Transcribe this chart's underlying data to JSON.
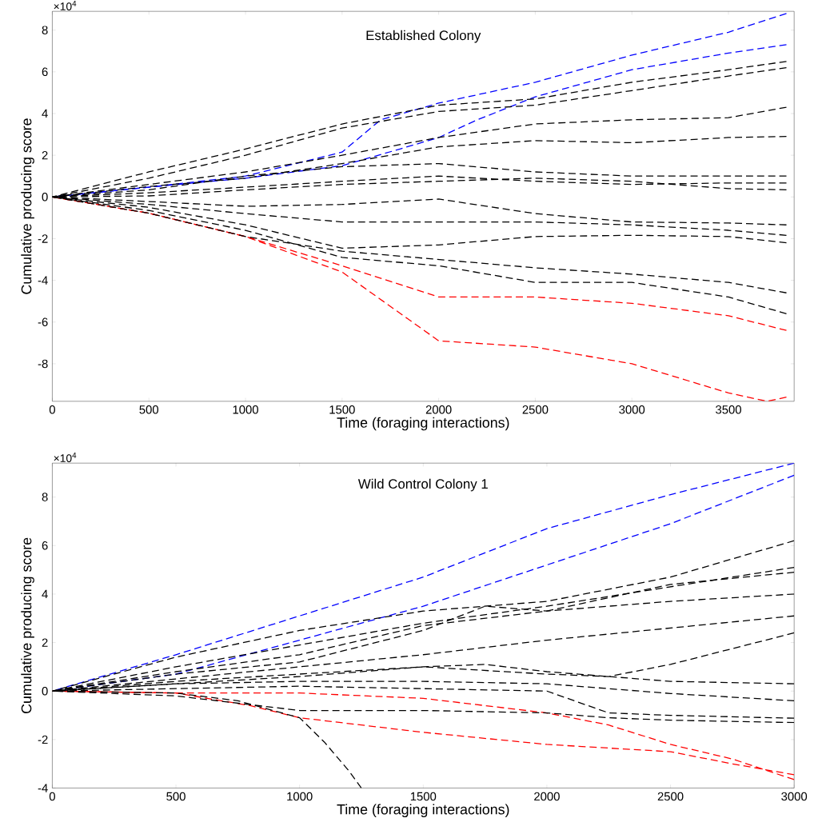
{
  "chart_data": [
    {
      "type": "line",
      "title": "Established Colony",
      "xlabel": "Time (foraging interactions)",
      "ylabel": "Cumulative producing score",
      "annotations": [
        "×10$^{4}$"
      ],
      "line_style": "dashed",
      "xlim": [
        0,
        3840
      ],
      "ylim": [
        -9.8,
        8.9
      ],
      "xticks": [
        0,
        500,
        1000,
        1500,
        2000,
        2500,
        3000,
        3500
      ],
      "yticks": [
        -8,
        -6,
        -4,
        -2,
        0,
        2,
        4,
        6,
        8
      ],
      "series": [
        {
          "color": "#0000ff",
          "x": [
            0,
            500,
            1000,
            1500,
            1700,
            2000,
            2500,
            3000,
            3500,
            3800
          ],
          "values": [
            0,
            0.47,
            1.0,
            2.15,
            3.7,
            4.5,
            5.5,
            6.8,
            7.9,
            8.8
          ]
        },
        {
          "color": "#0000ff",
          "x": [
            0,
            500,
            1000,
            1500,
            1800,
            2000,
            2200,
            2500,
            3000,
            3500,
            3800
          ],
          "values": [
            0,
            0.47,
            0.9,
            1.5,
            2.3,
            2.85,
            3.7,
            4.8,
            6.1,
            6.9,
            7.3
          ]
        },
        {
          "color": "#ff0000",
          "x": [
            0,
            500,
            1000,
            1500,
            2000,
            2500,
            3000,
            3500,
            3800
          ],
          "values": [
            0,
            -0.78,
            -1.9,
            -3.3,
            -4.8,
            -4.8,
            -5.1,
            -5.7,
            -6.4
          ]
        },
        {
          "color": "#ff0000",
          "x": [
            0,
            500,
            1000,
            1500,
            2000,
            2500,
            3000,
            3500,
            3700,
            3800
          ],
          "values": [
            0,
            -0.78,
            -1.9,
            -3.6,
            -6.9,
            -7.2,
            -8.0,
            -9.4,
            -9.8,
            -9.6
          ]
        },
        {
          "color": "#000000",
          "x": [
            0,
            500,
            1000,
            1500,
            2000,
            2500,
            3000,
            3500,
            3800
          ],
          "values": [
            0,
            1.2,
            2.3,
            3.5,
            4.4,
            4.7,
            5.5,
            6.1,
            6.5
          ]
        },
        {
          "color": "#000000",
          "x": [
            0,
            500,
            1000,
            1500,
            2000,
            2500,
            3000,
            3500,
            3800
          ],
          "values": [
            0,
            0.9,
            2.0,
            3.3,
            4.1,
            4.4,
            5.1,
            5.8,
            6.2
          ]
        },
        {
          "color": "#000000",
          "x": [
            0,
            500,
            1000,
            1500,
            2000,
            2500,
            3000,
            3500,
            3800
          ],
          "values": [
            0,
            0.6,
            1.2,
            2.0,
            2.85,
            3.5,
            3.7,
            3.8,
            4.3
          ]
        },
        {
          "color": "#000000",
          "x": [
            0,
            500,
            1000,
            1500,
            2000,
            2500,
            3000,
            3500,
            3800
          ],
          "values": [
            0,
            0.5,
            0.9,
            1.6,
            2.4,
            2.7,
            2.6,
            2.85,
            2.9
          ]
        },
        {
          "color": "#000000",
          "x": [
            0,
            500,
            1000,
            1500,
            2000,
            2500,
            3000,
            3500,
            3800
          ],
          "values": [
            0,
            0.34,
            1.0,
            1.45,
            1.6,
            1.2,
            1.0,
            1.0,
            1.0
          ]
        },
        {
          "color": "#000000",
          "x": [
            0,
            500,
            1000,
            1500,
            2000,
            2500,
            3000,
            3500,
            3800
          ],
          "values": [
            0,
            0.2,
            0.47,
            0.75,
            1.0,
            0.75,
            0.6,
            0.67,
            0.67
          ]
        },
        {
          "color": "#000000",
          "x": [
            0,
            500,
            1000,
            1500,
            2000,
            2500,
            3000,
            3500,
            3800
          ],
          "values": [
            0,
            0.05,
            0.34,
            0.6,
            0.75,
            0.9,
            0.75,
            0.4,
            0.34
          ]
        },
        {
          "color": "#000000",
          "x": [
            0,
            500,
            1000,
            1500,
            2000,
            2500,
            3000,
            3500,
            3800
          ],
          "values": [
            0,
            -0.22,
            -0.45,
            -0.36,
            -0.1,
            -0.8,
            -1.2,
            -1.25,
            -1.34
          ]
        },
        {
          "color": "#000000",
          "x": [
            0,
            500,
            1000,
            1500,
            2000,
            2500,
            3000,
            3500,
            3800
          ],
          "values": [
            0,
            -0.36,
            -0.8,
            -1.2,
            -1.2,
            -1.2,
            -1.34,
            -1.6,
            -1.84
          ]
        },
        {
          "color": "#000000",
          "x": [
            0,
            500,
            1000,
            1500,
            2000,
            2500,
            3000,
            3500,
            3800
          ],
          "values": [
            0,
            -0.5,
            -1.34,
            -2.46,
            -2.3,
            -1.9,
            -1.84,
            -1.9,
            -2.2
          ]
        },
        {
          "color": "#000000",
          "x": [
            0,
            500,
            1000,
            1500,
            2000,
            2500,
            3000,
            3500,
            3800
          ],
          "values": [
            0,
            -0.78,
            -1.9,
            -2.6,
            -3.0,
            -3.4,
            -3.7,
            -4.1,
            -4.6
          ]
        },
        {
          "color": "#000000",
          "x": [
            0,
            500,
            1000,
            1500,
            2000,
            2500,
            3000,
            3500,
            3800
          ],
          "values": [
            0,
            -0.65,
            -1.6,
            -2.9,
            -3.3,
            -4.1,
            -4.1,
            -4.8,
            -5.6
          ]
        }
      ]
    },
    {
      "type": "line",
      "title": "Wild Control Colony 1",
      "xlabel": "Time (foraging interactions)",
      "ylabel": "Cumulative producing score",
      "annotations": [
        "×10$^{4}$"
      ],
      "line_style": "dashed",
      "xlim": [
        0,
        3000
      ],
      "ylim": [
        -4,
        9.4
      ],
      "xticks": [
        0,
        500,
        1000,
        1500,
        2000,
        2500,
        3000
      ],
      "yticks": [
        -4,
        -2,
        0,
        2,
        4,
        6,
        8
      ],
      "series": [
        {
          "color": "#0000ff",
          "x": [
            0,
            500,
            1000,
            1500,
            2000,
            2500,
            3000
          ],
          "values": [
            0,
            1.5,
            3.1,
            4.7,
            6.7,
            8.1,
            9.4
          ]
        },
        {
          "color": "#0000ff",
          "x": [
            0,
            500,
            1000,
            1500,
            2000,
            2500,
            3000
          ],
          "values": [
            0,
            0.7,
            2.1,
            3.5,
            5.2,
            6.9,
            8.9
          ]
        },
        {
          "color": "#ff0000",
          "x": [
            0,
            500,
            1000,
            1500,
            1750,
            2000,
            2250,
            2500,
            2750,
            3000
          ],
          "values": [
            0,
            -0.08,
            -0.08,
            -0.3,
            -0.6,
            -0.9,
            -1.4,
            -2.2,
            -2.8,
            -3.65
          ]
        },
        {
          "color": "#ff0000",
          "x": [
            0,
            500,
            800,
            1000,
            1500,
            2000,
            2500,
            2750,
            3000
          ],
          "values": [
            0,
            -0.08,
            -0.6,
            -1.1,
            -1.7,
            -2.2,
            -2.5,
            -3.0,
            -3.45
          ]
        },
        {
          "color": "#000000",
          "x": [
            0,
            500,
            1000,
            1500,
            2000,
            2500,
            3000
          ],
          "values": [
            0,
            1.4,
            2.5,
            3.3,
            3.7,
            4.7,
            6.2
          ]
        },
        {
          "color": "#000000",
          "x": [
            0,
            500,
            1000,
            1500,
            2000,
            2500,
            3000
          ],
          "values": [
            0,
            1.0,
            1.9,
            2.8,
            3.5,
            4.3,
            5.1
          ]
        },
        {
          "color": "#000000",
          "x": [
            0,
            500,
            1000,
            1500,
            2000,
            2500,
            3000
          ],
          "values": [
            0,
            0.8,
            1.5,
            2.7,
            3.3,
            4.4,
            4.9
          ]
        },
        {
          "color": "#000000",
          "x": [
            0,
            500,
            1000,
            1500,
            1750,
            2000,
            2500,
            3000
          ],
          "values": [
            0,
            0.7,
            1.2,
            2.5,
            3.5,
            3.3,
            3.7,
            4.0
          ]
        },
        {
          "color": "#000000",
          "x": [
            0,
            500,
            1000,
            1500,
            2000,
            2500,
            3000
          ],
          "values": [
            0,
            0.5,
            1.0,
            1.5,
            2.1,
            2.6,
            3.1
          ]
        },
        {
          "color": "#000000",
          "x": [
            0,
            500,
            1000,
            1500,
            2000,
            2250,
            2500,
            3000
          ],
          "values": [
            0,
            0.3,
            0.6,
            1.0,
            0.7,
            0.6,
            1.1,
            2.4
          ]
        },
        {
          "color": "#000000",
          "x": [
            0,
            500,
            1000,
            1500,
            1750,
            2000,
            2500,
            3000
          ],
          "values": [
            0,
            0.4,
            0.7,
            1.0,
            1.1,
            0.8,
            0.4,
            0.3
          ]
        },
        {
          "color": "#000000",
          "x": [
            0,
            500,
            1000,
            1500,
            2000,
            2500,
            3000
          ],
          "values": [
            0,
            0.3,
            0.4,
            0.4,
            0.3,
            -0.1,
            -0.4
          ]
        },
        {
          "color": "#000000",
          "x": [
            0,
            500,
            1000,
            1500,
            2000,
            2250,
            2500,
            3000
          ],
          "values": [
            0,
            0.1,
            0.2,
            0.1,
            0.0,
            -0.9,
            -1.0,
            -1.12
          ]
        },
        {
          "color": "#000000",
          "x": [
            0,
            500,
            1000,
            1500,
            2000,
            2250,
            2500,
            3000
          ],
          "values": [
            0,
            -0.2,
            -0.8,
            -0.8,
            -0.9,
            -1.1,
            -1.2,
            -1.3
          ]
        },
        {
          "color": "#000000",
          "x": [
            0,
            500,
            750,
            1000,
            1100,
            1200,
            1250
          ],
          "values": [
            0,
            -0.08,
            -0.4,
            -1.1,
            -2.1,
            -3.3,
            -4.0
          ]
        }
      ]
    }
  ]
}
